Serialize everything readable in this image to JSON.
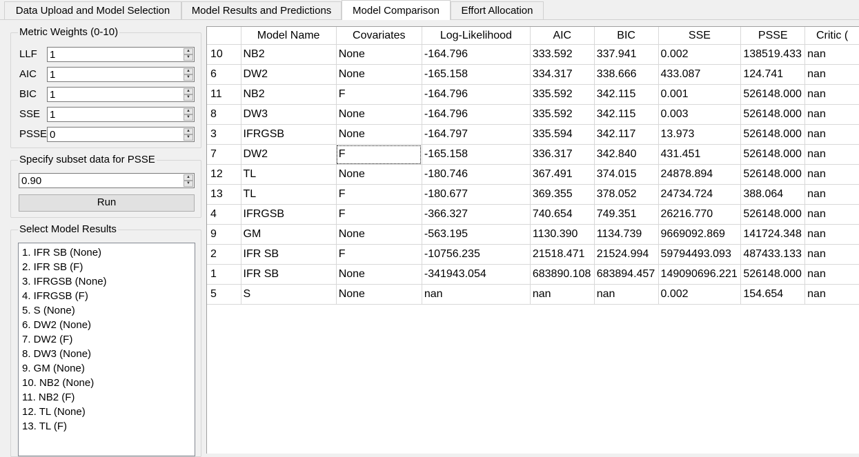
{
  "tabs": [
    {
      "label": "Data Upload and Model Selection"
    },
    {
      "label": "Model Results and Predictions"
    },
    {
      "label": "Model Comparison"
    },
    {
      "label": "Effort Allocation"
    }
  ],
  "metric_weights": {
    "title": "Metric Weights (0-10)",
    "rows": [
      {
        "label": "LLF",
        "value": "1"
      },
      {
        "label": "AIC",
        "value": "1"
      },
      {
        "label": "BIC",
        "value": "1"
      },
      {
        "label": "SSE",
        "value": "1"
      },
      {
        "label": "PSSE",
        "value": "0"
      }
    ]
  },
  "subset": {
    "title": "Specify subset data for PSSE",
    "value": "0.90",
    "run_label": "Run"
  },
  "select_results": {
    "title": "Select Model Results",
    "items": [
      "1. IFR SB (None)",
      "2. IFR SB (F)",
      "3. IFRGSB (None)",
      "4. IFRGSB (F)",
      "5. S (None)",
      "6. DW2 (None)",
      "7. DW2 (F)",
      "8. DW3 (None)",
      "9. GM (None)",
      "10. NB2 (None)",
      "11. NB2 (F)",
      "12. TL (None)",
      "13. TL (F)"
    ]
  },
  "table": {
    "sort_indicator": "^",
    "columns": [
      "",
      "Model Name",
      "Covariates",
      "Log-Likelihood",
      "AIC",
      "BIC",
      "SSE",
      "PSSE",
      "Critic ("
    ],
    "rows": [
      [
        "10",
        "NB2",
        "None",
        "-164.796",
        "333.592",
        "337.941",
        "0.002",
        "138519.433",
        "nan"
      ],
      [
        "6",
        "DW2",
        "None",
        "-165.158",
        "334.317",
        "338.666",
        "433.087",
        "124.741",
        "nan"
      ],
      [
        "11",
        "NB2",
        "F",
        "-164.796",
        "335.592",
        "342.115",
        "0.001",
        "526148.000",
        "nan"
      ],
      [
        "8",
        "DW3",
        "None",
        "-164.796",
        "335.592",
        "342.115",
        "0.003",
        "526148.000",
        "nan"
      ],
      [
        "3",
        "IFRGSB",
        "None",
        "-164.797",
        "335.594",
        "342.117",
        "13.973",
        "526148.000",
        "nan"
      ],
      [
        "7",
        "DW2",
        "F",
        "-165.158",
        "336.317",
        "342.840",
        "431.451",
        "526148.000",
        "nan"
      ],
      [
        "12",
        "TL",
        "None",
        "-180.746",
        "367.491",
        "374.015",
        "24878.894",
        "526148.000",
        "nan"
      ],
      [
        "13",
        "TL",
        "F",
        "-180.677",
        "369.355",
        "378.052",
        "24734.724",
        "388.064",
        "nan"
      ],
      [
        "4",
        "IFRGSB",
        "F",
        "-366.327",
        "740.654",
        "749.351",
        "26216.770",
        "526148.000",
        "nan"
      ],
      [
        "9",
        "GM",
        "None",
        "-563.195",
        "1130.390",
        "1134.739",
        "9669092.869",
        "141724.348",
        "nan"
      ],
      [
        "2",
        "IFR SB",
        "F",
        "-10756.235",
        "21518.471",
        "21524.994",
        "59794493.093",
        "487433.133",
        "nan"
      ],
      [
        "1",
        "IFR SB",
        "None",
        "-341943.054",
        "683890.108",
        "683894.457",
        "149090696.221",
        "526148.000",
        "nan"
      ],
      [
        "5",
        "S",
        "None",
        "nan",
        "nan",
        "nan",
        "0.002",
        "154.654",
        "nan"
      ]
    ]
  }
}
